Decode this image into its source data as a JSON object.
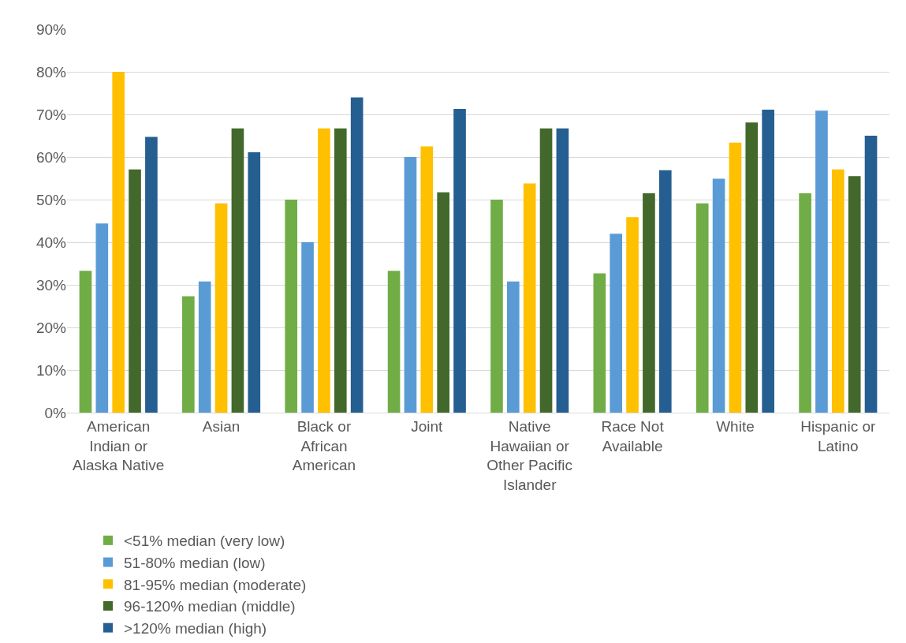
{
  "chart_data": {
    "type": "bar",
    "categories": [
      "American Indian or Alaska Native",
      "Asian",
      "Black or African American",
      "Joint",
      "Native Hawaiian or Other Pacific Islander",
      "Race Not Available",
      "White",
      "Hispanic or Latino"
    ],
    "series": [
      {
        "name": "<51% median (very low)",
        "color": "#70ad47",
        "values": [
          33.3,
          27.3,
          50.0,
          33.3,
          50.0,
          32.7,
          49.1,
          51.5
        ]
      },
      {
        "name": "51-80% median (low)",
        "color": "#5b9bd5",
        "values": [
          44.4,
          30.8,
          40.0,
          60.0,
          30.8,
          42.0,
          54.9,
          70.9
        ]
      },
      {
        "name": "81-95% median (moderate)",
        "color": "#ffc000",
        "values": [
          80.0,
          49.1,
          66.7,
          62.5,
          53.8,
          45.9,
          63.4,
          57.1
        ]
      },
      {
        "name": "96-120% median (middle)",
        "color": "#43682b",
        "values": [
          57.1,
          66.7,
          66.7,
          51.7,
          66.7,
          51.5,
          68.1,
          55.5
        ]
      },
      {
        "name": ">120% median (high)",
        "color": "#255e91",
        "values": [
          64.7,
          61.1,
          74.0,
          71.3,
          66.7,
          56.9,
          71.1,
          65.0
        ]
      }
    ],
    "ylim": [
      0,
      90
    ],
    "yticks": [
      {
        "value": 0,
        "label": "0%"
      },
      {
        "value": 10,
        "label": "10%"
      },
      {
        "value": 20,
        "label": "20%"
      },
      {
        "value": 30,
        "label": "30%"
      },
      {
        "value": 40,
        "label": "40%"
      },
      {
        "value": 50,
        "label": "50%"
      },
      {
        "value": 60,
        "label": "60%"
      },
      {
        "value": 70,
        "label": "70%"
      },
      {
        "value": 80,
        "label": "80%"
      },
      {
        "value": 90,
        "label": "90%"
      }
    ],
    "grid": "y",
    "legend": "bottom"
  }
}
